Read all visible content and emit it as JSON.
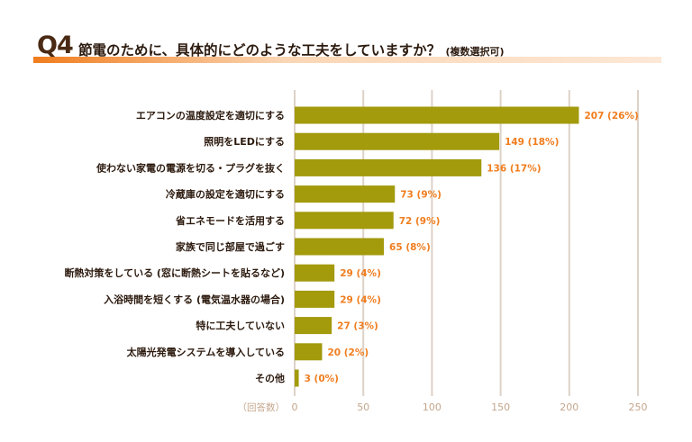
{
  "chart_data": {
    "type": "bar",
    "orientation": "horizontal",
    "title_prefix": "Q4",
    "title": "節電のために、具体的にどのような工夫をしていますか？",
    "subtitle": "(複数選択可)",
    "xlabel": "（回答数）",
    "xlim": [
      0,
      250
    ],
    "ticks": [
      0,
      50,
      100,
      150,
      200,
      250
    ],
    "categories": [
      "エアコンの温度設定を適切にする",
      "照明をLEDにする",
      "使わない家電の電源を切る・プラグを抜く",
      "冷蔵庫の設定を適切にする",
      "省エネモードを活用する",
      "家族で同じ部屋で過ごす",
      "断熱対策をしている (窓に断熱シートを貼るなど)",
      "入浴時間を短くする (電気温水器の場合)",
      "特に工夫していない",
      "太陽光発電システムを導入している",
      "その他"
    ],
    "values": [
      207,
      149,
      136,
      73,
      72,
      65,
      29,
      29,
      27,
      20,
      3
    ],
    "percents": [
      "26%",
      "18%",
      "17%",
      "9%",
      "9%",
      "8%",
      "4%",
      "4%",
      "3%",
      "2%",
      "0%"
    ],
    "colors": {
      "bar": "#a39a0c",
      "label": "#f07d1e",
      "grid": "#ddd2c8",
      "tick": "#c4a68c",
      "category": "#2c1a0e"
    }
  }
}
